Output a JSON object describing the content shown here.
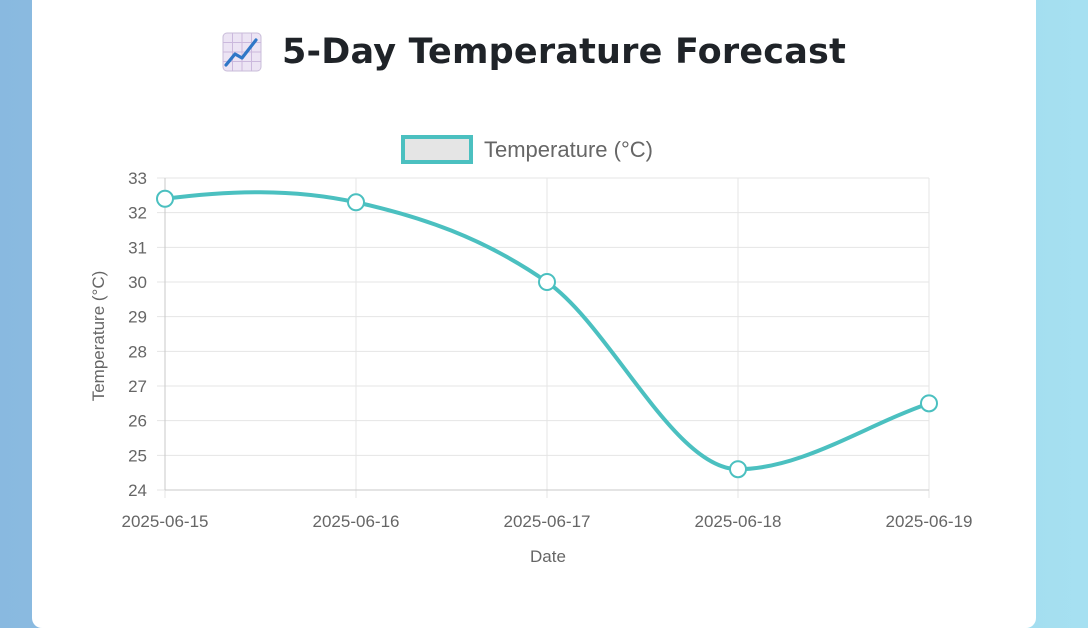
{
  "page": {
    "title": "5-Day Temperature Forecast",
    "title_icon": "chart-increasing-icon"
  },
  "colors": {
    "line": "#4bc0c0",
    "legend_fill": "#e5e5e5",
    "grid": "#e5e5e5",
    "text": "#666666"
  },
  "chart_data": {
    "type": "line",
    "categories": [
      "2025-06-15",
      "2025-06-16",
      "2025-06-17",
      "2025-06-18",
      "2025-06-19"
    ],
    "series": [
      {
        "name": "Temperature (°C)",
        "values": [
          32.4,
          32.3,
          30.0,
          24.6,
          26.5
        ]
      }
    ],
    "xlabel": "Date",
    "ylabel": "Temperature (°C)",
    "ylim": [
      24,
      33
    ],
    "yticks": [
      33,
      32,
      31,
      30,
      29,
      28,
      27,
      26,
      25,
      24
    ],
    "grid": true,
    "smooth": true,
    "legend_position": "top"
  }
}
